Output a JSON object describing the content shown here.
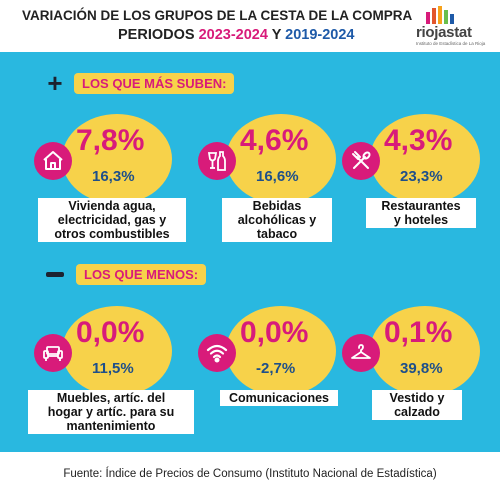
{
  "header": {
    "title_line1": "VARIACIÓN DE LOS GRUPOS DE  LA CESTA DE LA COMPRA",
    "title_line2_prefix": "PERIODOS ",
    "period1": "2023-2024",
    "title_line2_join": " Y ",
    "period2": "2019-2024"
  },
  "logo": {
    "name": "riojastat",
    "subtitle": "Instituto de Estadística de La Rioja",
    "bar_colors": [
      "#d81b7a",
      "#e2562c",
      "#f7a21b",
      "#6abf4b",
      "#1e5aa8"
    ]
  },
  "colors": {
    "panel_bg": "#29b8e0",
    "accent_pink": "#d81b7a",
    "accent_yellow": "#f7d24a",
    "accent_blue": "#1e4f8a"
  },
  "sections": {
    "up": {
      "sign": "+",
      "label": "LOS QUE MÁS SUBEN:"
    },
    "down": {
      "sign": "-",
      "label": "LOS QUE MENOS:"
    }
  },
  "items": [
    {
      "icon": "house-icon",
      "v1": "7,8%",
      "v2": "16,3%",
      "label": "Vivienda  agua,\nelectricidad, gas y\notros combustibles"
    },
    {
      "icon": "drinks-icon",
      "v1": "4,6%",
      "v2": "16,6%",
      "label": "Bebidas\nalcohólicas y\ntabaco"
    },
    {
      "icon": "cutlery-icon",
      "v1": "4,3%",
      "v2": "23,3%",
      "label": "Restaurantes\ny hoteles"
    },
    {
      "icon": "sofa-icon",
      "v1": "0,0%",
      "v2": "11,5%",
      "label": "Muebles, artíc. del\nhogar y artíc. para su\nmantenimiento"
    },
    {
      "icon": "wifi-icon",
      "v1": "0,0%",
      "v2": "-2,7%",
      "label": "Comunicaciones"
    },
    {
      "icon": "hanger-icon",
      "v1": "0,1%",
      "v2": "39,8%",
      "label": "Vestido y\ncalzado"
    }
  ],
  "footer": {
    "source": "Fuente: Índice de Precios de Consumo (Instituto Nacional de Estadística)"
  }
}
